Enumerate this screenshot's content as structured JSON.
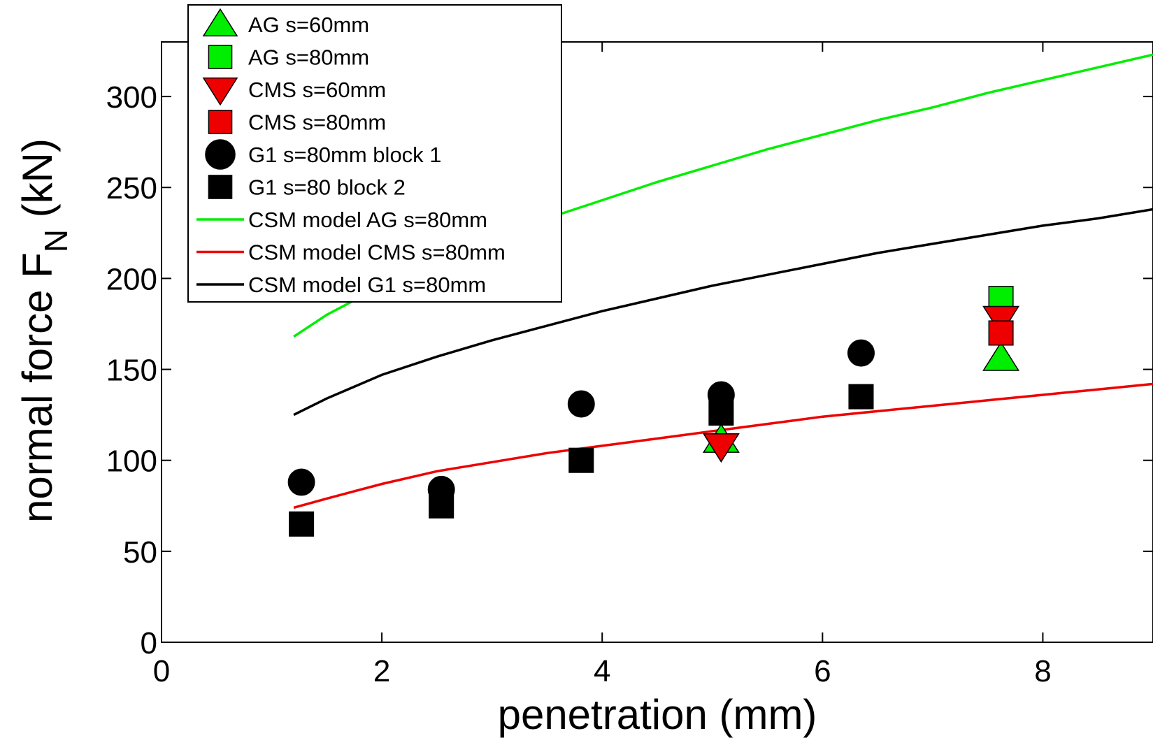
{
  "chart_data": {
    "type": "scatter",
    "xlabel": "penetration (mm)",
    "ylabel_main": "normal force F",
    "ylabel_sub": "N",
    "ylabel_unit": " (kN)",
    "xlim": [
      0,
      9
    ],
    "ylim": [
      0,
      330
    ],
    "xticks": [
      0,
      2,
      4,
      6,
      8
    ],
    "yticks": [
      0,
      50,
      100,
      150,
      200,
      250,
      300
    ],
    "legend_position": "top-left",
    "grid": false,
    "series": [
      {
        "name": "AG s=60mm",
        "marker": "triangle-up",
        "color": "#00ee00",
        "points": [
          [
            5.08,
            111
          ],
          [
            7.62,
            156
          ]
        ]
      },
      {
        "name": "AG s=80mm",
        "marker": "square",
        "color": "#00ee00",
        "points": [
          [
            7.62,
            189
          ]
        ]
      },
      {
        "name": "CMS s=60mm",
        "marker": "triangle-down",
        "color": "#ee0000",
        "points": [
          [
            5.08,
            108
          ],
          [
            7.62,
            178
          ]
        ]
      },
      {
        "name": "CMS s=80mm",
        "marker": "square",
        "color": "#ee0000",
        "points": [
          [
            7.62,
            170
          ]
        ]
      },
      {
        "name": "G1 s=80mm block 1",
        "marker": "circle",
        "color": "#000000",
        "points": [
          [
            1.27,
            88
          ],
          [
            2.54,
            84
          ],
          [
            3.81,
            131
          ],
          [
            5.08,
            136
          ],
          [
            6.35,
            159
          ]
        ]
      },
      {
        "name": "G1 s=80 block 2",
        "marker": "square",
        "color": "#000000",
        "points": [
          [
            1.27,
            65
          ],
          [
            2.54,
            75
          ],
          [
            3.81,
            100
          ],
          [
            5.08,
            126
          ],
          [
            6.35,
            135
          ]
        ]
      },
      {
        "name": "CSM model AG s=80mm",
        "marker": "line",
        "color": "#00ee00",
        "points": [
          [
            1.2,
            168
          ],
          [
            1.5,
            180
          ],
          [
            2.0,
            196
          ],
          [
            2.5,
            210
          ],
          [
            3.0,
            222
          ],
          [
            3.5,
            233
          ],
          [
            4.0,
            243
          ],
          [
            4.5,
            253
          ],
          [
            5.0,
            262
          ],
          [
            5.5,
            271
          ],
          [
            6.0,
            279
          ],
          [
            6.5,
            287
          ],
          [
            7.0,
            294
          ],
          [
            7.5,
            302
          ],
          [
            8.0,
            309
          ],
          [
            8.5,
            316
          ],
          [
            9.0,
            323
          ]
        ]
      },
      {
        "name": "CSM model CMS s=80mm",
        "marker": "line",
        "color": "#ee0000",
        "points": [
          [
            1.2,
            74
          ],
          [
            1.5,
            79
          ],
          [
            2.0,
            87
          ],
          [
            2.5,
            94
          ],
          [
            3.0,
            99
          ],
          [
            3.5,
            104
          ],
          [
            4.0,
            108
          ],
          [
            4.5,
            112
          ],
          [
            5.0,
            116
          ],
          [
            5.5,
            120
          ],
          [
            6.0,
            124
          ],
          [
            6.5,
            127
          ],
          [
            7.0,
            130
          ],
          [
            7.5,
            133
          ],
          [
            8.0,
            136
          ],
          [
            8.5,
            139
          ],
          [
            9.0,
            142
          ]
        ]
      },
      {
        "name": "CSM model G1 s=80mm",
        "marker": "line",
        "color": "#000000",
        "points": [
          [
            1.2,
            125
          ],
          [
            1.5,
            134
          ],
          [
            2.0,
            147
          ],
          [
            2.5,
            157
          ],
          [
            3.0,
            166
          ],
          [
            3.5,
            174
          ],
          [
            4.0,
            182
          ],
          [
            4.5,
            189
          ],
          [
            5.0,
            196
          ],
          [
            5.5,
            202
          ],
          [
            6.0,
            208
          ],
          [
            6.5,
            214
          ],
          [
            7.0,
            219
          ],
          [
            7.5,
            224
          ],
          [
            8.0,
            229
          ],
          [
            8.5,
            233
          ],
          [
            9.0,
            238
          ]
        ]
      }
    ]
  }
}
